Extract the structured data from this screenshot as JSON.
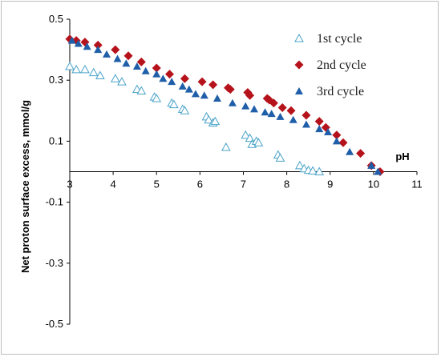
{
  "chart_data": {
    "type": "scatter",
    "title": "",
    "xlabel": "pH",
    "ylabel": "Net proton surface excess, mmol/g",
    "xlim": [
      3,
      11
    ],
    "ylim": [
      -0.5,
      0.5
    ],
    "x_ticks": [
      "3",
      "4",
      "5",
      "6",
      "7",
      "8",
      "9",
      "10",
      "11"
    ],
    "y_ticks": [
      "0.5",
      "0.3",
      "0.1",
      "-0.1",
      "-0.3",
      "-0.5"
    ],
    "grid": false,
    "legend_position": "top-right",
    "series": [
      {
        "name": "1st cycle",
        "marker": "triangle-open",
        "color": "#4aa3c8",
        "points": [
          [
            3.0,
            0.345
          ],
          [
            3.15,
            0.335
          ],
          [
            3.35,
            0.335
          ],
          [
            3.55,
            0.325
          ],
          [
            3.7,
            0.315
          ],
          [
            4.05,
            0.305
          ],
          [
            4.2,
            0.295
          ],
          [
            4.55,
            0.27
          ],
          [
            4.65,
            0.265
          ],
          [
            4.95,
            0.245
          ],
          [
            5.0,
            0.24
          ],
          [
            5.35,
            0.225
          ],
          [
            5.4,
            0.22
          ],
          [
            5.6,
            0.205
          ],
          [
            5.65,
            0.2
          ],
          [
            6.15,
            0.18
          ],
          [
            6.2,
            0.17
          ],
          [
            6.3,
            0.16
          ],
          [
            6.35,
            0.165
          ],
          [
            6.6,
            0.08
          ],
          [
            7.05,
            0.12
          ],
          [
            7.15,
            0.11
          ],
          [
            7.2,
            0.09
          ],
          [
            7.3,
            0.1
          ],
          [
            7.35,
            0.095
          ],
          [
            7.8,
            0.055
          ],
          [
            7.85,
            0.045
          ],
          [
            8.3,
            0.02
          ],
          [
            8.4,
            0.01
          ],
          [
            8.5,
            0.005
          ],
          [
            8.6,
            0.003
          ],
          [
            8.75,
            0.0
          ]
        ]
      },
      {
        "name": "2nd cycle",
        "marker": "diamond",
        "color": "#b5121b",
        "points": [
          [
            3.0,
            0.435
          ],
          [
            3.15,
            0.43
          ],
          [
            3.35,
            0.425
          ],
          [
            3.65,
            0.415
          ],
          [
            4.05,
            0.4
          ],
          [
            4.35,
            0.38
          ],
          [
            4.65,
            0.36
          ],
          [
            5.0,
            0.34
          ],
          [
            5.3,
            0.32
          ],
          [
            5.65,
            0.305
          ],
          [
            6.05,
            0.295
          ],
          [
            6.3,
            0.285
          ],
          [
            6.65,
            0.275
          ],
          [
            6.7,
            0.27
          ],
          [
            7.1,
            0.26
          ],
          [
            7.15,
            0.25
          ],
          [
            7.55,
            0.24
          ],
          [
            7.6,
            0.235
          ],
          [
            7.7,
            0.225
          ],
          [
            7.9,
            0.21
          ],
          [
            8.1,
            0.2
          ],
          [
            8.45,
            0.185
          ],
          [
            8.75,
            0.165
          ],
          [
            8.9,
            0.145
          ],
          [
            9.15,
            0.12
          ],
          [
            9.3,
            0.095
          ],
          [
            9.7,
            0.06
          ],
          [
            9.95,
            0.02
          ],
          [
            10.15,
            0.0
          ]
        ]
      },
      {
        "name": "3rd cycle",
        "marker": "triangle",
        "color": "#1f5ea8",
        "points": [
          [
            3.05,
            0.43
          ],
          [
            3.2,
            0.42
          ],
          [
            3.4,
            0.41
          ],
          [
            3.65,
            0.4
          ],
          [
            3.85,
            0.385
          ],
          [
            4.1,
            0.37
          ],
          [
            4.3,
            0.355
          ],
          [
            4.55,
            0.345
          ],
          [
            4.75,
            0.33
          ],
          [
            5.0,
            0.32
          ],
          [
            5.15,
            0.305
          ],
          [
            5.35,
            0.295
          ],
          [
            5.6,
            0.28
          ],
          [
            5.75,
            0.27
          ],
          [
            5.9,
            0.255
          ],
          [
            6.1,
            0.25
          ],
          [
            6.4,
            0.24
          ],
          [
            6.75,
            0.225
          ],
          [
            7.05,
            0.215
          ],
          [
            7.25,
            0.205
          ],
          [
            7.5,
            0.195
          ],
          [
            7.65,
            0.19
          ],
          [
            7.85,
            0.18
          ],
          [
            8.15,
            0.17
          ],
          [
            8.45,
            0.155
          ],
          [
            8.75,
            0.14
          ],
          [
            8.95,
            0.13
          ],
          [
            9.15,
            0.1
          ],
          [
            9.45,
            0.065
          ],
          [
            9.95,
            0.02
          ],
          [
            10.1,
            0.0
          ]
        ]
      }
    ]
  }
}
